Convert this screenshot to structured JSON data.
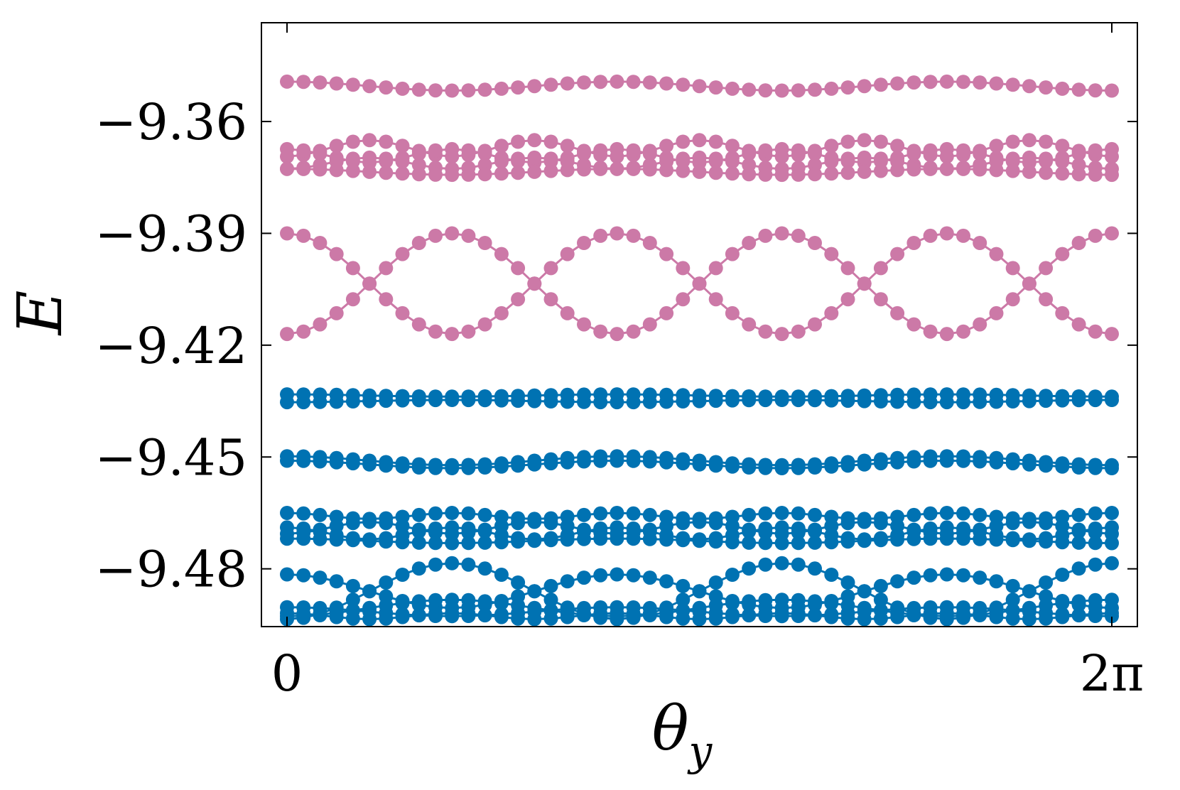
{
  "chart_data": {
    "type": "line",
    "title": "",
    "xlabel": "θ",
    "xlabel_subscript": "y",
    "ylabel": "E",
    "xlim": [
      0,
      6.2832
    ],
    "ylim": [
      -9.4955,
      -9.3335
    ],
    "x_ticks": [
      {
        "value": 0,
        "label": "0"
      },
      {
        "value": 6.2832,
        "label": "2π"
      }
    ],
    "y_ticks": [
      {
        "value": -9.36,
        "label": "−9.36"
      },
      {
        "value": -9.39,
        "label": "−9.39"
      },
      {
        "value": -9.42,
        "label": "−9.42"
      },
      {
        "value": -9.45,
        "label": "−9.45"
      },
      {
        "value": -9.48,
        "label": "−9.48"
      }
    ],
    "grid": false,
    "legend": "none",
    "points_per_band": 51,
    "colors": {
      "upper_group": "#cc79a7",
      "lower_group": "#0072b2"
    },
    "groups": [
      {
        "color": "#cc79a7",
        "bands": [
          {
            "type": "cos",
            "mean": -9.3505,
            "amp": 0.0012,
            "k": 5,
            "phase": 0
          },
          {
            "type": "cos",
            "mean": -9.3672,
            "amp": 0.0022,
            "k": 10,
            "phase": 3.1416
          },
          {
            "type": "cos",
            "mean": -9.3692,
            "amp": 0.0018,
            "k": 10,
            "phase": 0
          },
          {
            "type": "cos",
            "mean": -9.3712,
            "amp": 0.0015,
            "k": 10,
            "phase": 3.1416
          },
          {
            "type": "cos",
            "mean": -9.3735,
            "amp": 0.0008,
            "k": 5,
            "phase": 0
          },
          {
            "type": "cos",
            "mean": -9.4035,
            "amp": 0.0135,
            "k": 5,
            "phase": 0
          },
          {
            "type": "cos",
            "mean": -9.4035,
            "amp": 0.0135,
            "k": 5,
            "phase": 3.1416
          }
        ]
      },
      {
        "color": "#0072b2",
        "bands": [
          {
            "type": "cos",
            "mean": -9.4335,
            "amp": 0.0003,
            "k": 5,
            "phase": 0
          },
          {
            "type": "cos",
            "mean": -9.435,
            "amp": 0.0003,
            "k": 5,
            "phase": 3.1416
          },
          {
            "type": "cos",
            "mean": -9.451,
            "amp": 0.0012,
            "k": 5,
            "phase": 0
          },
          {
            "type": "cos",
            "mean": -9.452,
            "amp": 0.001,
            "k": 5,
            "phase": 0
          },
          {
            "type": "cos",
            "mean": -9.4658,
            "amp": 0.0008,
            "k": 10,
            "phase": 0
          },
          {
            "type": "cos",
            "mean": -9.469,
            "amp": 0.0016,
            "k": 10,
            "phase": 3.1416
          },
          {
            "type": "cos",
            "mean": -9.4705,
            "amp": 0.0016,
            "k": 10,
            "phase": 0
          },
          {
            "type": "cos",
            "mean": -9.4725,
            "amp": 0.0006,
            "k": 5,
            "phase": 0
          },
          {
            "type": "cos",
            "mean": -9.486,
            "amp": 0.0075,
            "k": 5,
            "phase": 3.1416
          },
          {
            "type": "cos",
            "mean": -9.486,
            "amp": 0.0045,
            "k": 5,
            "phase": 0
          },
          {
            "type": "cos",
            "mean": -9.4905,
            "amp": 0.0022,
            "k": 5,
            "phase": 3.1416
          },
          {
            "type": "cos",
            "mean": -9.4915,
            "amp": 0.0012,
            "k": 5,
            "phase": 0
          },
          {
            "type": "cos",
            "mean": -9.4927,
            "amp": 0.0008,
            "k": 10,
            "phase": 0
          }
        ]
      }
    ]
  }
}
